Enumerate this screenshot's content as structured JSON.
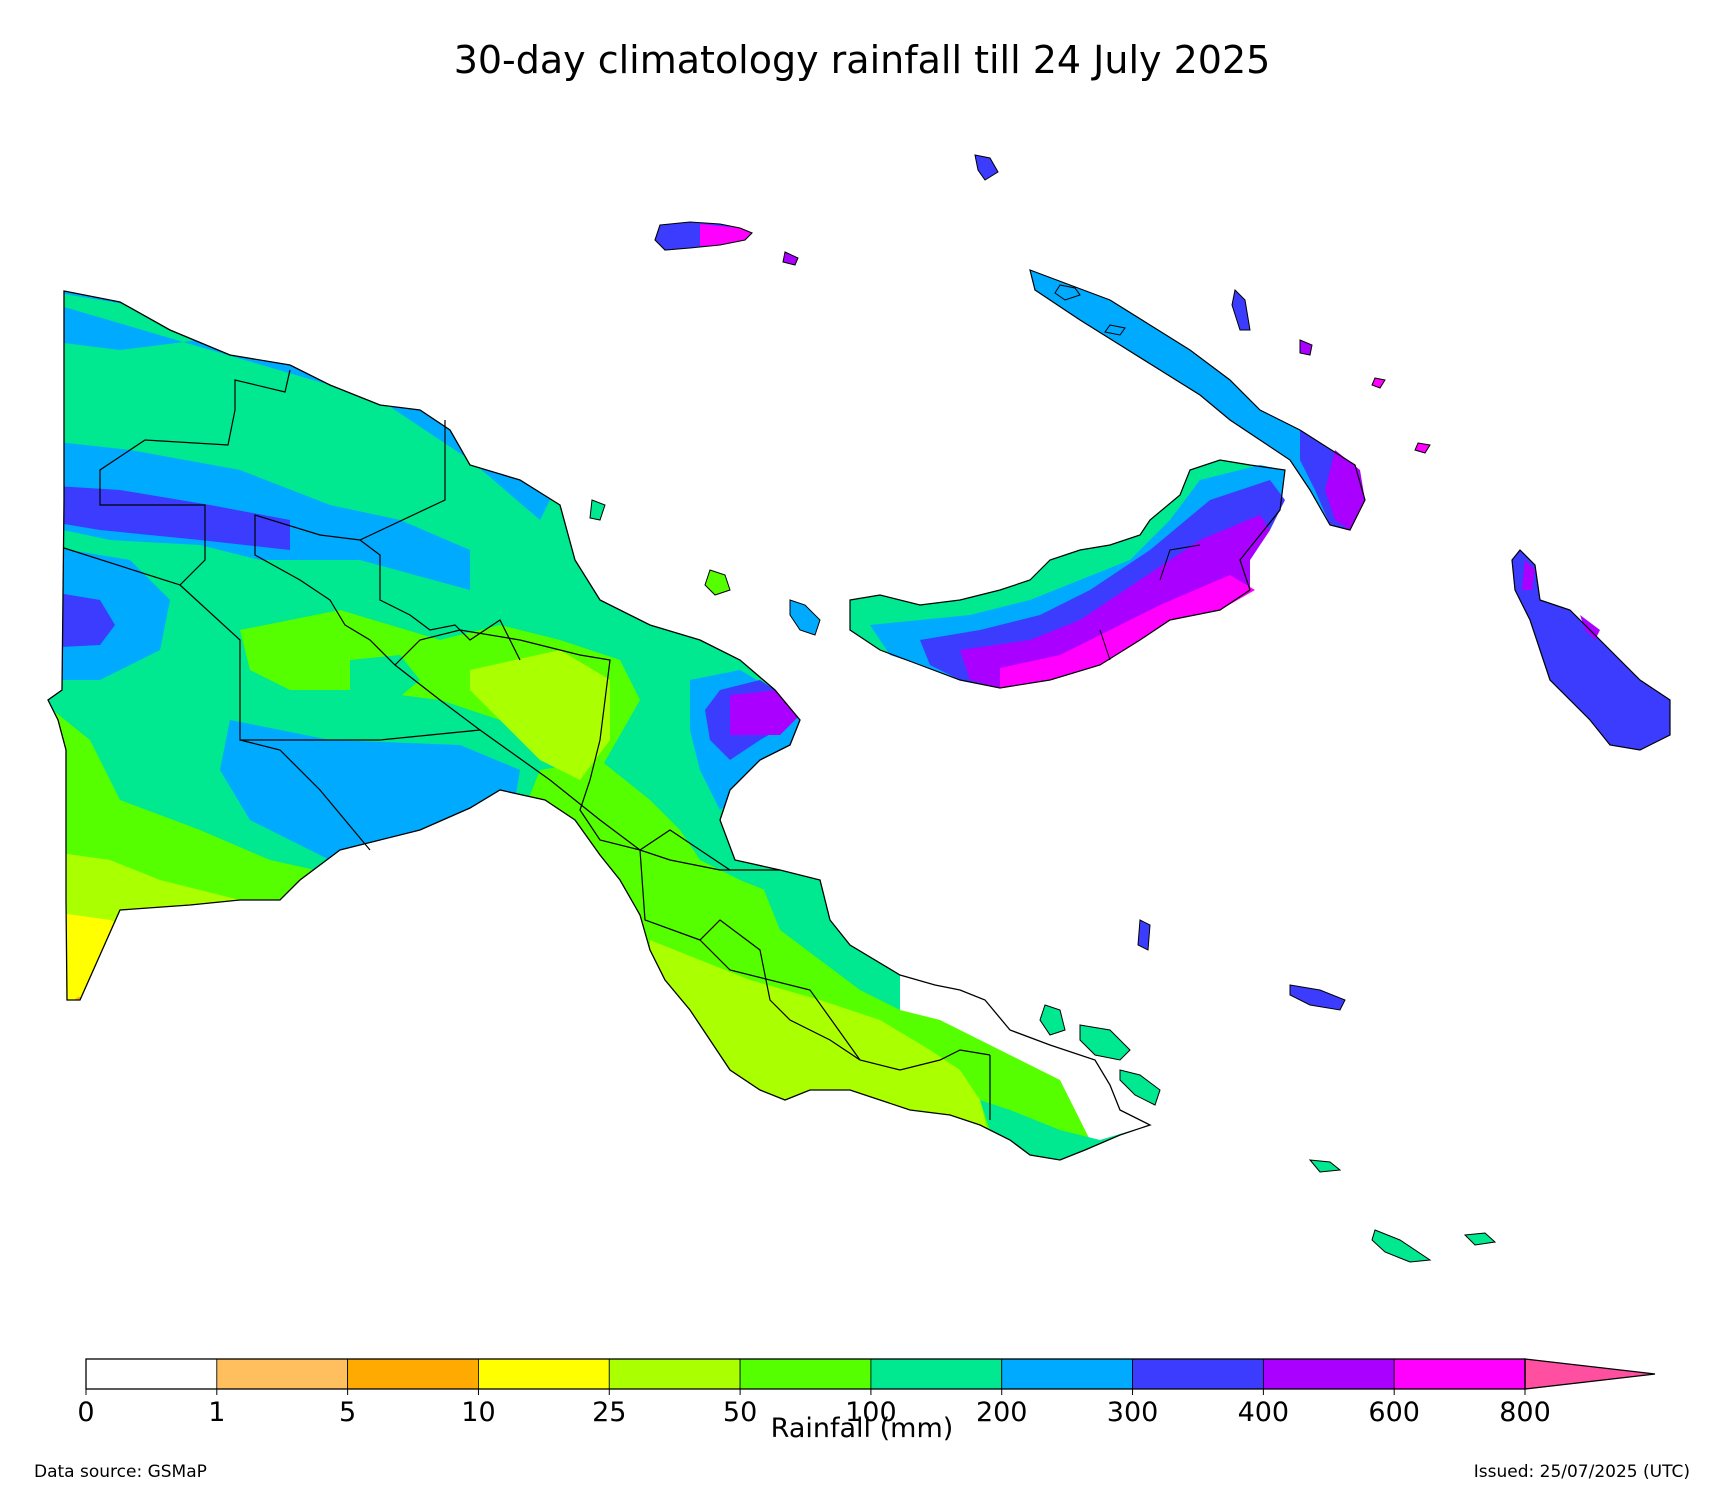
{
  "title": "30-day climatology rainfall till 24 July 2025",
  "colorbar": {
    "label": "Rainfall (mm)",
    "ticks": [
      "0",
      "1",
      "5",
      "10",
      "25",
      "50",
      "100",
      "200",
      "300",
      "400",
      "600",
      "800"
    ],
    "colors": [
      "#ffffff",
      "#ffbf5e",
      "#ffaa00",
      "#ffff00",
      "#aaff00",
      "#55ff00",
      "#00e890",
      "#00aaff",
      "#3c3cff",
      "#aa00ff",
      "#ff00ff"
    ],
    "extend_color": "#ff4fa0"
  },
  "footer": {
    "source": "Data source: GSMaP",
    "issued": "Issued: 25/07/2025 (UTC)"
  }
}
